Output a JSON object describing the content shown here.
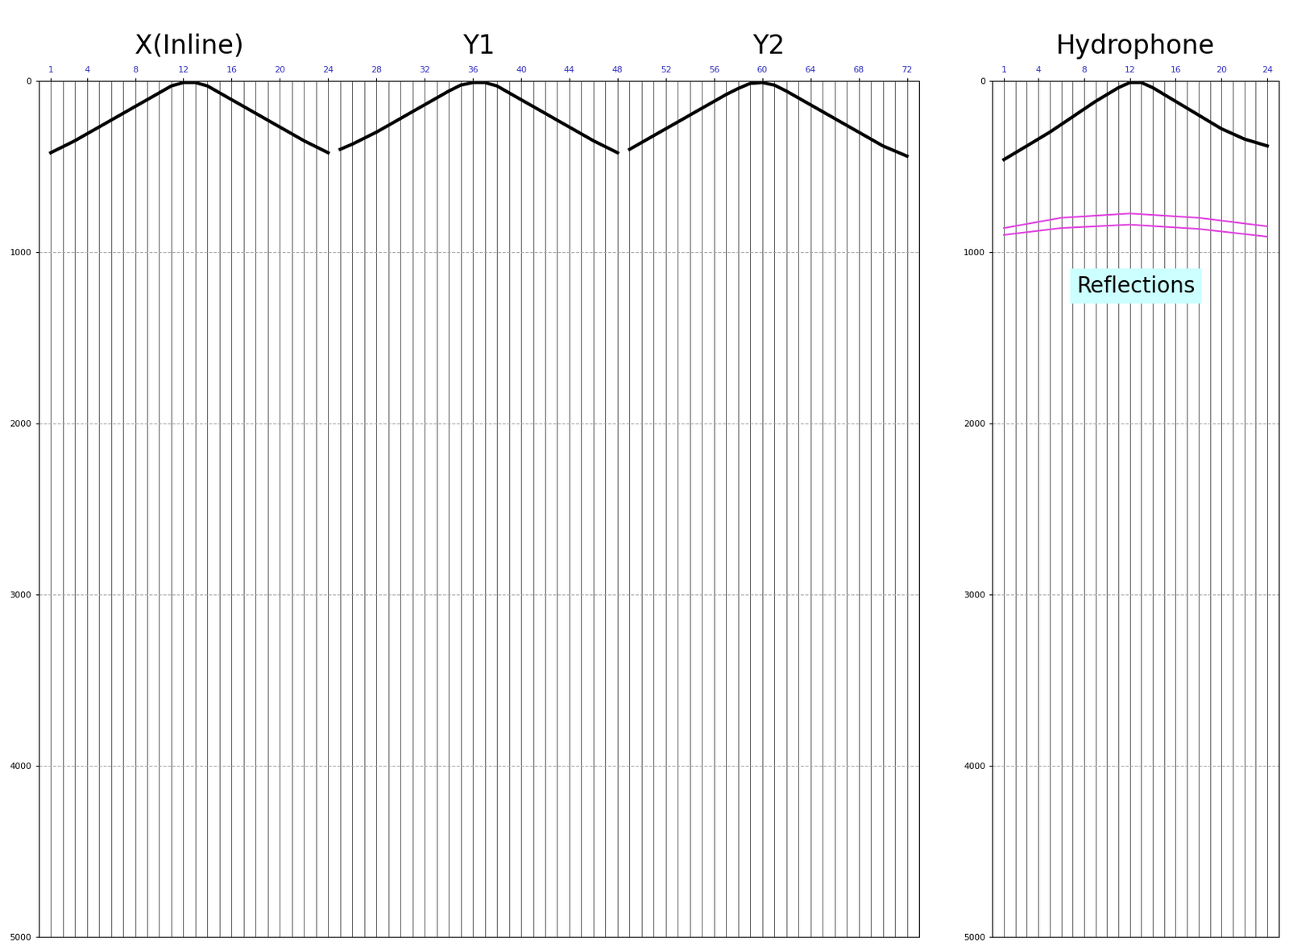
{
  "chart_data": [
    {
      "type": "wiggle",
      "grid": true,
      "xlim": [
        0,
        73
      ],
      "xticks": [
        1,
        4,
        8,
        12,
        16,
        20,
        24,
        28,
        32,
        36,
        40,
        44,
        48,
        52,
        56,
        60,
        64,
        68,
        72
      ],
      "ylim": [
        5000,
        0
      ],
      "yticks": [
        0,
        1000,
        2000,
        3000,
        4000,
        5000
      ],
      "series": [
        {
          "name": "X(Inline)",
          "type": "line",
          "color": "#000000",
          "x": [
            1,
            2,
            3,
            4,
            5,
            6,
            7,
            8,
            9,
            10,
            11,
            12,
            13,
            14,
            15,
            16,
            17,
            18,
            19,
            20,
            21,
            22,
            23,
            24
          ],
          "values": [
            420,
            385,
            350,
            310,
            270,
            230,
            190,
            150,
            110,
            70,
            30,
            10,
            10,
            30,
            70,
            110,
            150,
            190,
            230,
            270,
            310,
            350,
            385,
            420
          ]
        },
        {
          "name": "Y1",
          "type": "line",
          "color": "#000000",
          "x": [
            25,
            26,
            27,
            28,
            29,
            30,
            31,
            32,
            33,
            34,
            35,
            36,
            37,
            38,
            39,
            40,
            41,
            42,
            43,
            44,
            45,
            46,
            47,
            48
          ],
          "values": [
            400,
            370,
            335,
            300,
            260,
            220,
            180,
            140,
            100,
            60,
            25,
            10,
            10,
            30,
            70,
            110,
            150,
            190,
            230,
            270,
            310,
            350,
            385,
            420
          ]
        },
        {
          "name": "Y2",
          "type": "line",
          "color": "#000000",
          "x": [
            49,
            50,
            51,
            52,
            53,
            54,
            55,
            56,
            57,
            58,
            59,
            60,
            61,
            62,
            63,
            64,
            65,
            66,
            67,
            68,
            69,
            70,
            71,
            72
          ],
          "values": [
            400,
            360,
            320,
            280,
            240,
            200,
            160,
            120,
            80,
            45,
            15,
            10,
            25,
            60,
            100,
            140,
            180,
            220,
            260,
            300,
            340,
            380,
            410,
            440
          ]
        }
      ]
    },
    {
      "type": "wiggle",
      "grid": true,
      "xlim": [
        0,
        25
      ],
      "xticks": [
        1,
        4,
        8,
        12,
        16,
        20,
        24
      ],
      "ylim": [
        5000,
        0
      ],
      "yticks": [
        0,
        1000,
        2000,
        3000,
        4000,
        5000
      ],
      "series": [
        {
          "name": "Hydrophone",
          "type": "line",
          "color": "#000000",
          "x": [
            1,
            2,
            3,
            4,
            5,
            6,
            7,
            8,
            9,
            10,
            11,
            12,
            13,
            14,
            15,
            16,
            17,
            18,
            19,
            20,
            21,
            22,
            23,
            24
          ],
          "values": [
            460,
            420,
            380,
            340,
            300,
            255,
            210,
            165,
            120,
            80,
            40,
            10,
            10,
            40,
            80,
            120,
            160,
            200,
            240,
            280,
            310,
            340,
            360,
            380
          ]
        }
      ],
      "annotations": [
        {
          "text": "Reflections",
          "lines": [
            {
              "color": "#e040e0",
              "x": [
                1,
                6,
                12,
                18,
                24
              ],
              "values": [
                860,
                800,
                775,
                800,
                850
              ]
            },
            {
              "color": "#e040e0",
              "x": [
                1,
                6,
                12,
                18,
                24
              ],
              "values": [
                900,
                860,
                840,
                865,
                910
              ]
            }
          ]
        }
      ]
    }
  ]
}
